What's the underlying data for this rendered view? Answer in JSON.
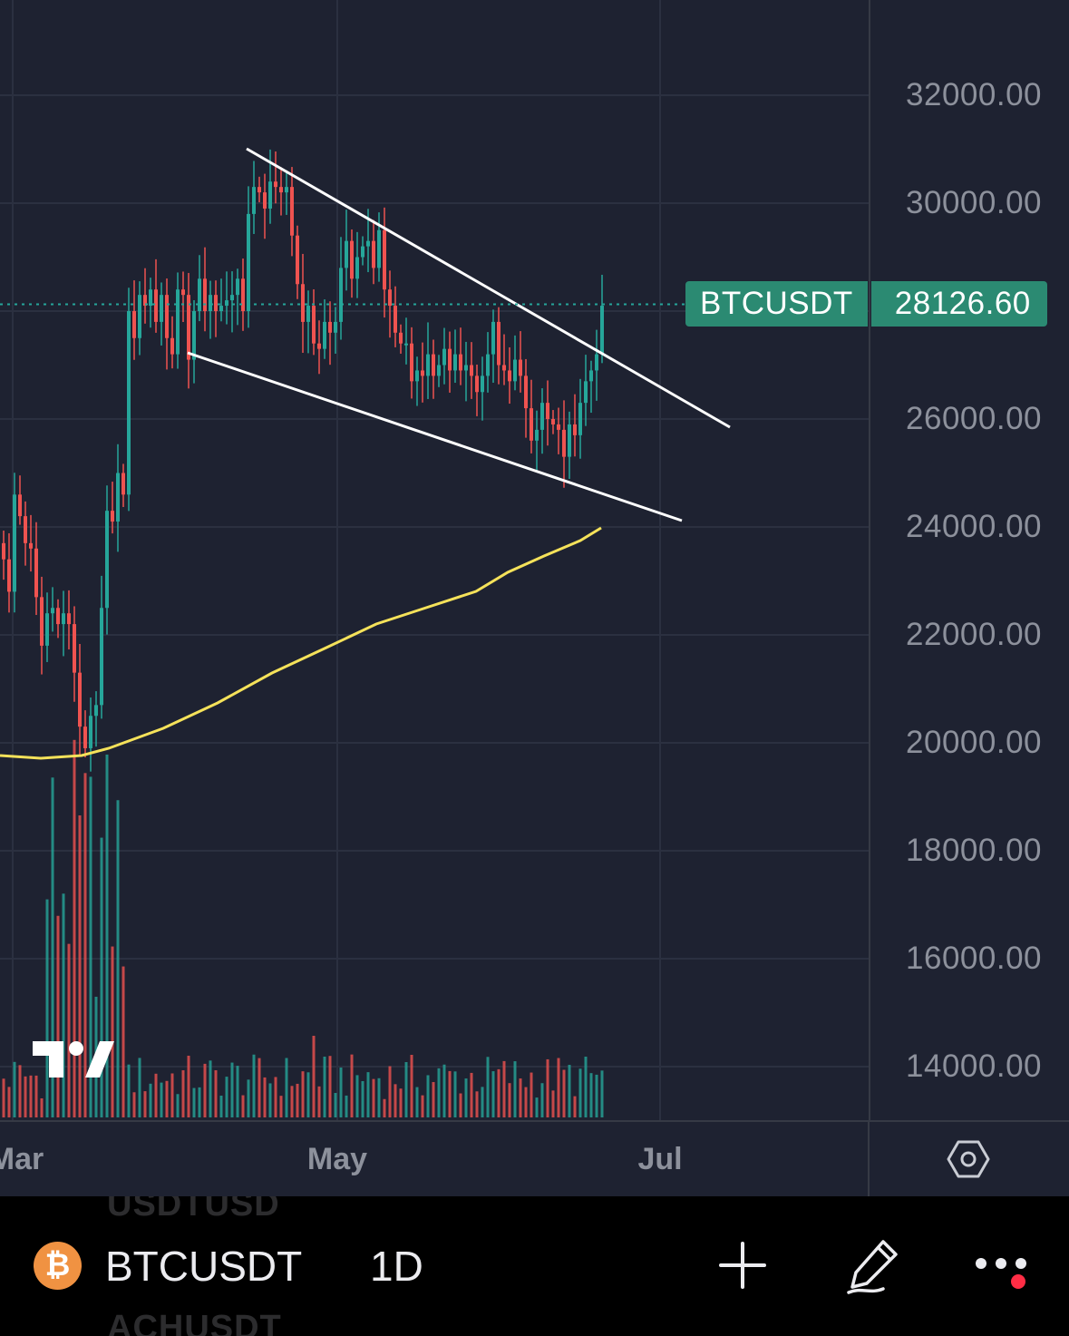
{
  "chart": {
    "symbol": "BTCUSDT",
    "last_price": "28126.60",
    "price_ticks": [
      "32000.00",
      "30000.00",
      "26000.00",
      "24000.00",
      "22000.00",
      "20000.00",
      "18000.00",
      "16000.00",
      "14000.00"
    ],
    "time_ticks": [
      "Mar",
      "May",
      "Jul"
    ],
    "colors": {
      "background": "#1e2231",
      "up": "#26a69a",
      "down": "#ef5350",
      "moving_average": "#f5e25a",
      "trendlines": "#ffffff",
      "badge": "#2b8a72"
    }
  },
  "chart_data": {
    "type": "candlestick",
    "symbol": "BTCUSDT",
    "interval": "1D",
    "ylim": [
      13000,
      33500
    ],
    "x_range": [
      "Feb 14",
      "Jul 31"
    ],
    "closes": [
      23400,
      22800,
      24600,
      24200,
      23700,
      23600,
      22700,
      21800,
      22400,
      22500,
      22200,
      22400,
      22200,
      21300,
      20300,
      19900,
      20500,
      20700,
      22500,
      24300,
      24100,
      25000,
      24600,
      28000,
      27500,
      28300,
      28100,
      28400,
      27800,
      28300,
      27500,
      27200,
      28400,
      28300,
      27100,
      28000,
      28600,
      28000,
      28300,
      28000,
      28100,
      28200,
      28300,
      28600,
      28000,
      29800,
      30300,
      30200,
      29900,
      30400,
      30300,
      30200,
      30300,
      29400,
      28500,
      27800,
      28100,
      27400,
      27300,
      27800,
      27600,
      27800,
      28800,
      29300,
      28600,
      29000,
      29200,
      29300,
      28800,
      29500,
      28400,
      28100,
      27600,
      27400,
      27400,
      26700,
      26900,
      26800,
      27200,
      26800,
      27000,
      27300,
      26900,
      27200,
      26900,
      27000,
      26800,
      26500,
      26800,
      27200,
      27800,
      27000,
      26900,
      26700,
      27100,
      26800,
      26200,
      25600,
      25800,
      26300,
      26000,
      25900,
      25800,
      25300,
      25900,
      25700,
      26300,
      26700,
      26900,
      27200,
      28100
    ]
  }
}
